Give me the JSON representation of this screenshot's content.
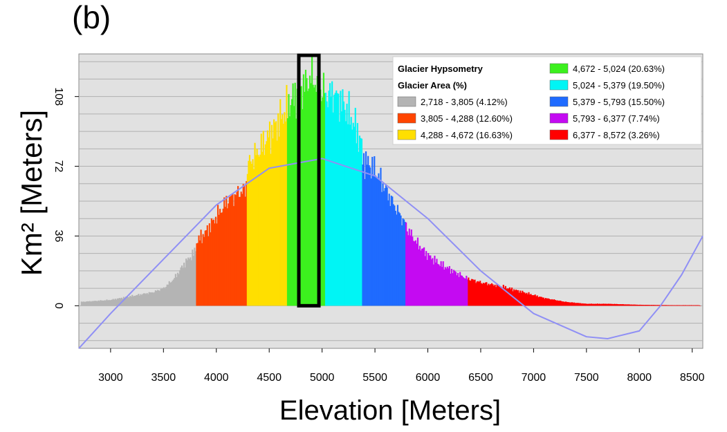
{
  "panel_label": "(b)",
  "chart_data": {
    "type": "bar",
    "xlabel": "Elevation [Meters]",
    "ylabel": "Km² [Meters]",
    "xlim": [
      2700,
      8600
    ],
    "ylim": [
      -22,
      130
    ],
    "x_ticks": [
      3000,
      3500,
      4000,
      4500,
      5000,
      5500,
      6000,
      6500,
      7000,
      7500,
      8000,
      8500
    ],
    "y_ticks": [
      0,
      36,
      72,
      108
    ],
    "grid": true,
    "legend_position": "top-right",
    "legend": {
      "title": "Glacier Hypsometry",
      "subtitle": "Glacier Area (%)",
      "entries": [
        {
          "label": "2,718 - 3,805 (4.12%)",
          "color": "#b4b4b4"
        },
        {
          "label": "3,805 - 4,288 (12.60%)",
          "color": "#ff4500"
        },
        {
          "label": "4,288 - 4,672 (16.63%)",
          "color": "#ffdf00"
        },
        {
          "label": "4,672 - 5,024 (20.63%)",
          "color": "#3cf01e"
        },
        {
          "label": "5,024 - 5,379 (19.50%)",
          "color": "#00f5f5"
        },
        {
          "label": "5,379 - 5,793 (15.50%)",
          "color": "#1f6bff"
        },
        {
          "label": "5,793 - 6,377 (7.74%)",
          "color": "#c40af2"
        },
        {
          "label": "6,377 - 8,572 (3.26%)",
          "color": "#ff0000"
        }
      ]
    },
    "bands": [
      {
        "from": 2718,
        "to": 3805,
        "color": "#b4b4b4"
      },
      {
        "from": 3805,
        "to": 4288,
        "color": "#ff4500"
      },
      {
        "from": 4288,
        "to": 4672,
        "color": "#ffdf00"
      },
      {
        "from": 4672,
        "to": 5024,
        "color": "#3cf01e"
      },
      {
        "from": 5024,
        "to": 5379,
        "color": "#00f5f5"
      },
      {
        "from": 5379,
        "to": 5793,
        "color": "#1f6bff"
      },
      {
        "from": 5793,
        "to": 6377,
        "color": "#c40af2"
      },
      {
        "from": 6377,
        "to": 8572,
        "color": "#ff0000"
      }
    ],
    "histogram": {
      "x": [
        2718,
        3000,
        3200,
        3400,
        3500,
        3600,
        3700,
        3800,
        3810,
        3900,
        4000,
        4100,
        4200,
        4280,
        4290,
        4400,
        4500,
        4600,
        4670,
        4680,
        4800,
        4900,
        5000,
        5020,
        5030,
        5100,
        5200,
        5300,
        5370,
        5380,
        5500,
        5600,
        5700,
        5790,
        5800,
        5900,
        6000,
        6100,
        6200,
        6300,
        6370,
        6380,
        6500,
        6700,
        6900,
        7100,
        7300,
        7500,
        7700,
        8000,
        8300,
        8572
      ],
      "y": [
        2,
        3,
        5,
        7,
        9,
        14,
        22,
        28,
        33,
        38,
        46,
        54,
        58,
        60,
        72,
        80,
        88,
        96,
        102,
        104,
        112,
        118,
        110,
        112,
        108,
        110,
        104,
        94,
        84,
        76,
        70,
        60,
        50,
        42,
        40,
        32,
        26,
        22,
        19,
        16,
        14,
        14,
        12,
        10,
        7,
        4,
        2,
        1,
        1,
        0.5,
        0.3,
        0.3
      ]
    },
    "fitted_curve": {
      "color": "#8f8ff5",
      "x": [
        2700,
        3000,
        3500,
        4000,
        4500,
        5000,
        5500,
        6000,
        6500,
        7000,
        7500,
        7700,
        8000,
        8200,
        8400,
        8600
      ],
      "y": [
        -22,
        -4,
        24,
        52,
        71,
        76,
        67,
        45,
        18,
        -4,
        -16,
        -17,
        -13,
        0,
        16,
        36
      ]
    },
    "highlight_box": {
      "x_from": 4780,
      "x_to": 4970,
      "color": "#000000"
    }
  }
}
